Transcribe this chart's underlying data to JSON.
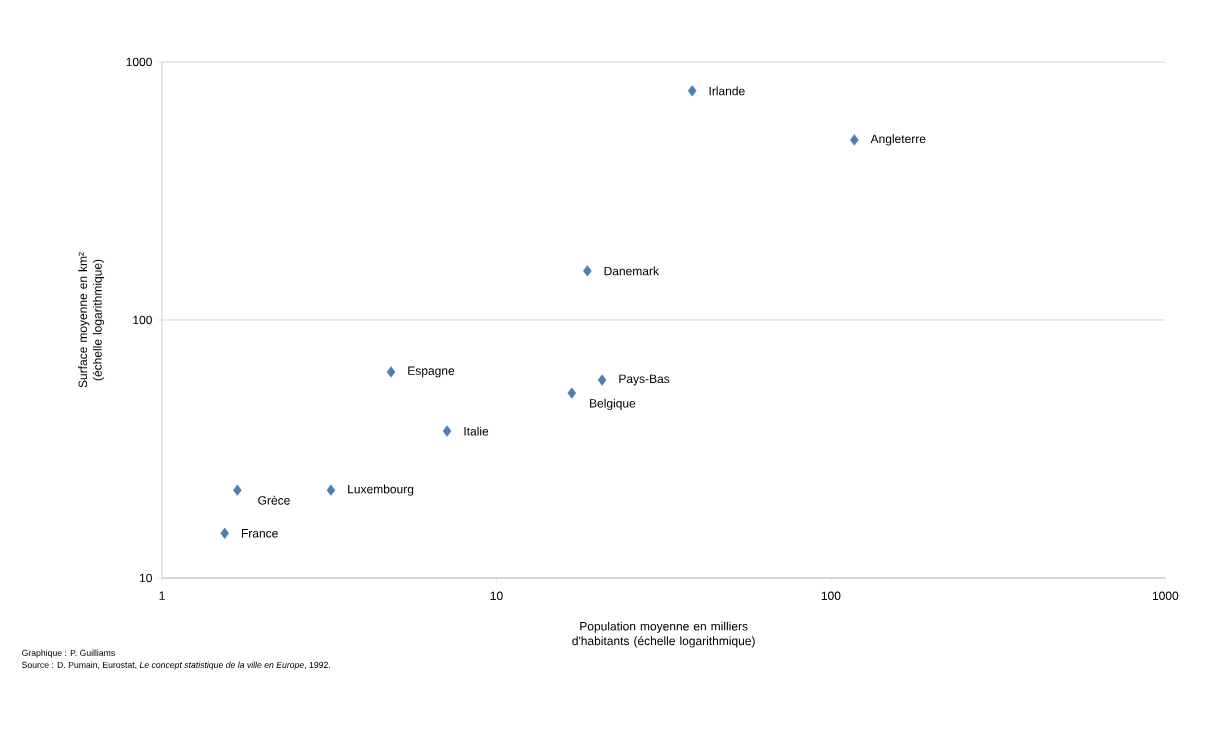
{
  "chart_data": {
    "type": "scatter",
    "xlabel": "Population moyenne en milliers d'habitants (échelle logarithmique)",
    "ylabel": "Surface moyenne en km² (échelle logarithmique)",
    "series": [
      {
        "name": "Irlande",
        "color": "#4a7ebb",
        "x": [
          38.5
        ],
        "values": [
          773
        ]
      },
      {
        "name": "Angleterre",
        "color": "#4a7ebb",
        "x": [
          117.5
        ],
        "values": [
          499
        ]
      },
      {
        "name": "Danemark",
        "color": "#4a7ebb",
        "x": [
          18.7
        ],
        "values": [
          155
        ]
      },
      {
        "name": "Espagne",
        "color": "#4a7ebb",
        "x": [
          4.84
        ],
        "values": [
          62.9
        ]
      },
      {
        "name": "Pays-Bas",
        "color": "#4a7ebb",
        "x": [
          20.7
        ],
        "values": [
          58.5
        ]
      },
      {
        "name": "Belgique",
        "color": "#4a7ebb",
        "x": [
          16.8
        ],
        "values": [
          52.1
        ]
      },
      {
        "name": "Italie",
        "color": "#4a7ebb",
        "x": [
          7.12
        ],
        "values": [
          37.1
        ]
      },
      {
        "name": "Grèce",
        "color": "#4a7ebb",
        "x": [
          1.68
        ],
        "values": [
          21.9
        ]
      },
      {
        "name": "Luxembourg",
        "color": "#4a7ebb",
        "x": [
          3.2
        ],
        "values": [
          21.9
        ]
      },
      {
        "name": "France",
        "color": "#4a7ebb",
        "x": [
          1.54
        ],
        "values": [
          14.9
        ]
      }
    ],
    "xlim": [
      1,
      1000
    ],
    "ylim": [
      10,
      1000
    ],
    "xticks": [
      1,
      10,
      100,
      1000
    ],
    "yticks": [
      10,
      100,
      1000
    ],
    "log": "xy",
    "grid": "y",
    "marker": "diamond",
    "annotations": [
      "Graphique : P. Guilliams",
      "Source : D. Pumain, Eurostat, *Le concept statistique de la ville en Europe*, 1992."
    ]
  }
}
